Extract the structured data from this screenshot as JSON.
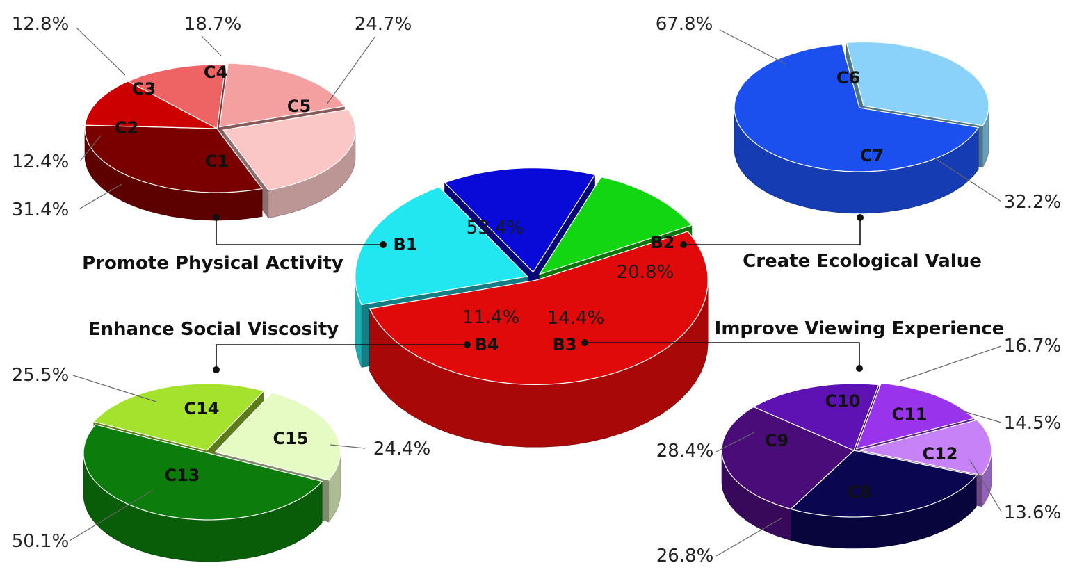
{
  "chart_data": [
    {
      "type": "pie",
      "name": "main",
      "slices": [
        {
          "label": "B1",
          "value": 53.4,
          "value_label": "53.4%",
          "color": "#e00a0a"
        },
        {
          "label": "B2",
          "value": 20.8,
          "value_label": "20.8%",
          "color": "#22e6f0"
        },
        {
          "label": "B3",
          "value": 14.4,
          "value_label": "14.4%",
          "color": "#0a0ad8"
        },
        {
          "label": "B4",
          "value": 11.4,
          "value_label": "11.4%",
          "color": "#12d612"
        }
      ]
    },
    {
      "type": "pie",
      "name": "B1",
      "title": "Promote Physical Activity",
      "slices": [
        {
          "label": "C1",
          "value": 31.4,
          "value_label": "31.4%",
          "color": "#7a0000"
        },
        {
          "label": "C2",
          "value": 12.4,
          "value_label": "12.4%",
          "color": "#cc0000"
        },
        {
          "label": "C3",
          "value": 12.8,
          "value_label": "12.8%",
          "color": "#ee6464"
        },
        {
          "label": "C4",
          "value": 18.7,
          "value_label": "18.7%",
          "color": "#f4a0a0"
        },
        {
          "label": "C5",
          "value": 24.7,
          "value_label": "24.7%",
          "color": "#fac6c6"
        }
      ]
    },
    {
      "type": "pie",
      "name": "B2",
      "title": "Create Ecological Value",
      "slices": [
        {
          "label": "C6",
          "value": 67.8,
          "value_label": "67.8%",
          "color": "#1c50ee"
        },
        {
          "label": "C7",
          "value": 32.2,
          "value_label": "32.2%",
          "color": "#8ad2fa"
        }
      ]
    },
    {
      "type": "pie",
      "name": "B4",
      "title": "Enhance Social Viscosity",
      "slices": [
        {
          "label": "C13",
          "value": 50.1,
          "value_label": "50.1%",
          "color": "#0c7c0c"
        },
        {
          "label": "C14",
          "value": 25.5,
          "value_label": "25.5%",
          "color": "#a4e22e"
        },
        {
          "label": "C15",
          "value": 24.4,
          "value_label": "24.4%",
          "color": "#e6fac4"
        }
      ]
    },
    {
      "type": "pie",
      "name": "B3",
      "title": "Improve Viewing Experience",
      "slices": [
        {
          "label": "C8",
          "value": 26.8,
          "value_label": "26.8%",
          "color": "#0a0650"
        },
        {
          "label": "C9",
          "value": 28.4,
          "value_label": "28.4%",
          "color": "#4a0c78"
        },
        {
          "label": "C10",
          "value": 16.7,
          "value_label": "16.7%",
          "color": "#5e12b4"
        },
        {
          "label": "C11",
          "value": 14.5,
          "value_label": "14.5%",
          "color": "#9a34ec"
        },
        {
          "label": "C12",
          "value": 13.6,
          "value_label": "13.6%",
          "color": "#c682f6"
        }
      ]
    }
  ]
}
